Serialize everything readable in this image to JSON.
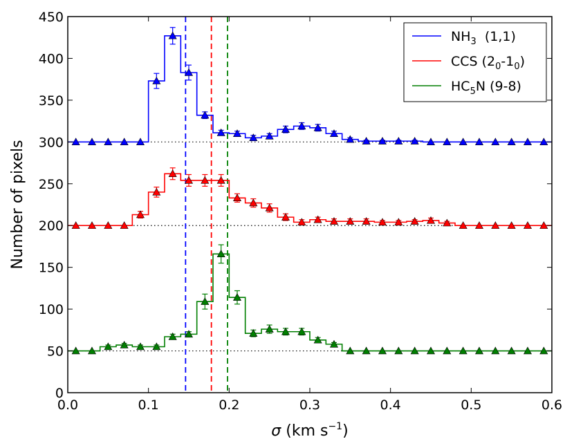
{
  "chart_data": {
    "type": "line",
    "title": "",
    "xlabel_parts": {
      "sigma": "σ",
      "open": " (km s",
      "exp": "−1",
      "close": ")"
    },
    "xlabel": "σ (km s⁻¹)",
    "ylabel": "Number of pixels",
    "xlim": [
      0.0,
      0.6
    ],
    "ylim": [
      0,
      450
    ],
    "xticks": [
      "0.0",
      "0.1",
      "0.2",
      "0.3",
      "0.4",
      "0.5",
      "0.6"
    ],
    "yticks": [
      "0",
      "50",
      "100",
      "150",
      "200",
      "250",
      "300",
      "350",
      "400",
      "450"
    ],
    "x": [
      0.01,
      0.03,
      0.05,
      0.07,
      0.09,
      0.11,
      0.13,
      0.15,
      0.17,
      0.19,
      0.21,
      0.23,
      0.25,
      0.27,
      0.29,
      0.31,
      0.33,
      0.35,
      0.37,
      0.39,
      0.41,
      0.43,
      0.45,
      0.47,
      0.49,
      0.51,
      0.53,
      0.55,
      0.57,
      0.59
    ],
    "series": [
      {
        "name": "NH3 (1,1)",
        "legend": {
          "base": "NH",
          "sub": "3",
          "rest": "  (1,1)"
        },
        "color": "#0000ff",
        "baseline": 300,
        "vline": 0.146,
        "values": [
          300,
          300,
          300,
          300,
          300,
          373,
          427,
          383,
          332,
          311,
          310,
          305,
          307,
          315,
          319,
          317,
          310,
          303,
          301,
          301,
          301,
          301,
          300,
          300,
          300,
          300,
          300,
          300,
          300,
          300
        ],
        "errors": [
          0,
          0,
          0,
          0,
          0,
          9,
          10,
          9,
          4,
          3,
          3,
          3,
          3,
          4,
          4,
          4,
          3,
          2,
          1,
          1,
          1,
          1,
          0,
          0,
          0,
          0,
          0,
          0,
          0,
          0
        ]
      },
      {
        "name": "CCS (2₀-1₀)",
        "legend": {
          "base": "CCS (2",
          "sub": "0",
          "mid": "-1",
          "sub2": "0",
          "rest": ")"
        },
        "color": "#ff0000",
        "baseline": 200,
        "vline": 0.178,
        "values": [
          200,
          200,
          200,
          200,
          213,
          240,
          262,
          254,
          254,
          254,
          233,
          227,
          221,
          210,
          204,
          207,
          205,
          205,
          205,
          204,
          204,
          205,
          206,
          203,
          200,
          200,
          200,
          200,
          200,
          200
        ],
        "errors": [
          0,
          0,
          0,
          0,
          4,
          6,
          7,
          7,
          7,
          7,
          5,
          5,
          5,
          4,
          3,
          3,
          3,
          3,
          3,
          2,
          2,
          2,
          3,
          2,
          0,
          0,
          0,
          0,
          0,
          0
        ]
      },
      {
        "name": "HC5N (9-8)",
        "legend": {
          "base": "HC",
          "sub": "5",
          "rest": "N (9-8)"
        },
        "color": "#007f00",
        "baseline": 50,
        "vline": 0.198,
        "values": [
          50,
          50,
          55,
          57,
          55,
          55,
          67,
          70,
          109,
          166,
          114,
          71,
          76,
          73,
          73,
          63,
          58,
          50,
          50,
          50,
          50,
          50,
          50,
          50,
          50,
          50,
          50,
          50,
          50,
          50
        ],
        "errors": [
          0,
          0,
          2,
          2,
          2,
          2,
          3,
          3,
          9,
          11,
          8,
          4,
          5,
          4,
          4,
          3,
          2,
          0,
          0,
          0,
          0,
          0,
          0,
          0,
          0,
          0,
          0,
          0,
          0,
          0
        ]
      }
    ],
    "legend_position": "top-right",
    "baseline_style": "dotted"
  }
}
